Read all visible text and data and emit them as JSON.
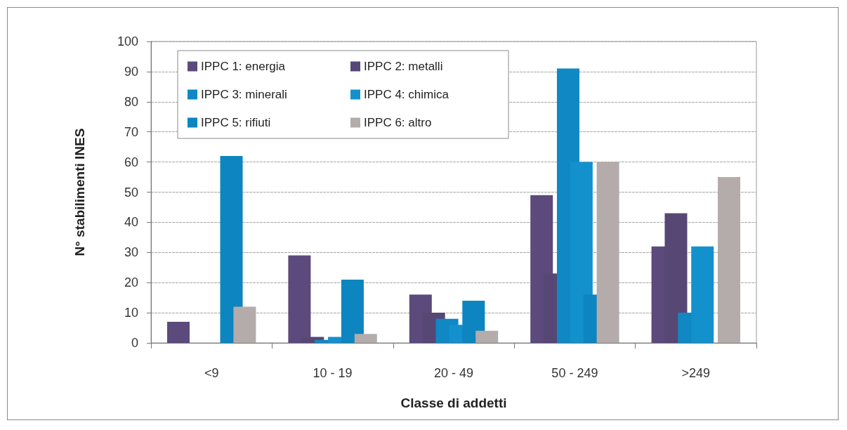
{
  "chart_data": {
    "type": "bar",
    "xlabel": "Classe di addetti",
    "ylabel": "N° stabilimenti INES",
    "categories": [
      "<9",
      "10 - 19",
      "20 - 49",
      "50 - 249",
      ">249"
    ],
    "series": [
      {
        "name": "IPPC 1: energia",
        "color": "#5b4a7b",
        "values": [
          7,
          29,
          16,
          49,
          32
        ]
      },
      {
        "name": "IPPC 2: metalli",
        "color": "#574775",
        "values": [
          0,
          2,
          10,
          23,
          43
        ]
      },
      {
        "name": "IPPC 3: minerali",
        "color": "#0f88c4",
        "values": [
          0,
          1,
          8,
          91,
          10
        ]
      },
      {
        "name": "IPPC 4: chimica",
        "color": "#1391cd",
        "values": [
          0,
          2,
          6,
          60,
          32
        ]
      },
      {
        "name": "IPPC 5: rifiuti",
        "color": "#0c85c0",
        "values": [
          62,
          21,
          14,
          16,
          0
        ]
      },
      {
        "name": "IPPC 6: altro",
        "color": "#b3acaa",
        "values": [
          12,
          3,
          4,
          60,
          55
        ]
      }
    ],
    "ylim": [
      0,
      100
    ],
    "yticks": [
      0,
      10,
      20,
      30,
      40,
      50,
      60,
      70,
      80,
      90,
      100
    ],
    "grid": "y",
    "legend": "top left"
  }
}
